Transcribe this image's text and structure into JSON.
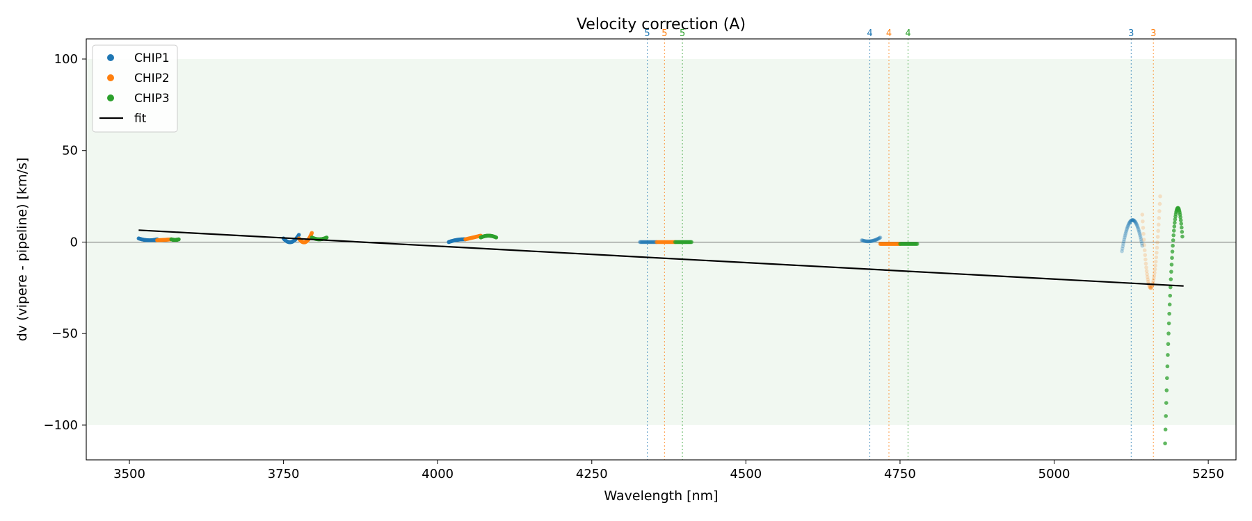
{
  "chart_data": {
    "type": "scatter",
    "title": "Velocity correction (A)",
    "xlabel": "Wavelength [nm]",
    "ylabel": "dv (vipere - pipeline) [km/s]",
    "xlim": [
      3430,
      5295
    ],
    "ylim": [
      -119,
      111
    ],
    "xticks": [
      3500,
      3750,
      4000,
      4250,
      4500,
      4750,
      5000,
      5250
    ],
    "yticks": [
      -100,
      -50,
      0,
      50,
      100
    ],
    "xtick_labels": [
      "3500",
      "3750",
      "4000",
      "4250",
      "4500",
      "4750",
      "5000",
      "5250"
    ],
    "ytick_labels": [
      "−100",
      "−50",
      "0",
      "50",
      "100"
    ],
    "band": {
      "y0": -100,
      "y1": 100,
      "color": "#e8f4e8"
    },
    "zero_line": 0,
    "legend": {
      "position": "upper-left",
      "entries": [
        {
          "label": "CHIP1",
          "kind": "marker",
          "color": "#1f77b4"
        },
        {
          "label": "CHIP2",
          "kind": "marker",
          "color": "#ff7f0e"
        },
        {
          "label": "CHIP3",
          "kind": "marker",
          "color": "#2ca02c"
        },
        {
          "label": "fit",
          "kind": "line",
          "color": "#000000"
        }
      ]
    },
    "colors": {
      "CHIP1": "#1f77b4",
      "CHIP2": "#ff7f0e",
      "CHIP3": "#2ca02c"
    },
    "fit": {
      "x": [
        3515,
        5210
      ],
      "y": [
        6.5,
        -24
      ]
    },
    "order_markers": [
      {
        "x": 4340,
        "label": "5",
        "chip": "CHIP1"
      },
      {
        "x": 4368,
        "label": "5",
        "chip": "CHIP2"
      },
      {
        "x": 4397,
        "label": "5",
        "chip": "CHIP3"
      },
      {
        "x": 4701,
        "label": "4",
        "chip": "CHIP1"
      },
      {
        "x": 4732,
        "label": "4",
        "chip": "CHIP2"
      },
      {
        "x": 4763,
        "label": "4",
        "chip": "CHIP3"
      },
      {
        "x": 5125,
        "label": "3",
        "chip": "CHIP1"
      },
      {
        "x": 5161,
        "label": "3",
        "chip": "CHIP2"
      }
    ],
    "segments": [
      {
        "chip": "CHIP1",
        "alpha": 0.9,
        "x0": 3515,
        "x1": 3545,
        "mode": "poly",
        "y": [
          2,
          1,
          1.5
        ]
      },
      {
        "chip": "CHIP2",
        "alpha": 0.9,
        "x0": 3545,
        "x1": 3568,
        "mode": "poly",
        "y": [
          1,
          1.2,
          1.5
        ]
      },
      {
        "chip": "CHIP3",
        "alpha": 0.9,
        "x0": 3568,
        "x1": 3580,
        "mode": "poly",
        "y": [
          1.5,
          1.2,
          1.5
        ]
      },
      {
        "chip": "CHIP1",
        "alpha": 0.9,
        "x0": 3750,
        "x1": 3775,
        "mode": "poly",
        "y": [
          2,
          0,
          4
        ]
      },
      {
        "chip": "CHIP2",
        "alpha": 0.9,
        "x0": 3775,
        "x1": 3796,
        "mode": "poly",
        "y": [
          2,
          0,
          5
        ]
      },
      {
        "chip": "CHIP3",
        "alpha": 0.9,
        "x0": 3796,
        "x1": 3820,
        "mode": "poly",
        "y": [
          2.5,
          1.5,
          2.5
        ]
      },
      {
        "chip": "CHIP1",
        "alpha": 0.9,
        "x0": 4018,
        "x1": 4045,
        "mode": "poly",
        "y": [
          0,
          1.2,
          1.5
        ]
      },
      {
        "chip": "CHIP2",
        "alpha": 0.9,
        "x0": 4045,
        "x1": 4070,
        "mode": "poly",
        "y": [
          1.5,
          2.5,
          3.5
        ]
      },
      {
        "chip": "CHIP3",
        "alpha": 0.9,
        "x0": 4070,
        "x1": 4095,
        "mode": "poly",
        "y": [
          2.5,
          3.5,
          2.5
        ]
      },
      {
        "chip": "CHIP1",
        "alpha": 0.35,
        "x0": 4328,
        "x1": 4355,
        "mode": "poly",
        "y": [
          0,
          0,
          0
        ]
      },
      {
        "chip": "CHIP2",
        "alpha": 0.55,
        "x0": 4355,
        "x1": 4385,
        "mode": "poly",
        "y": [
          0,
          0,
          0
        ]
      },
      {
        "chip": "CHIP3",
        "alpha": 0.55,
        "x0": 4385,
        "x1": 4412,
        "mode": "poly",
        "y": [
          0,
          0,
          0
        ]
      },
      {
        "chip": "CHIP1",
        "alpha": 0.35,
        "x0": 4688,
        "x1": 4718,
        "mode": "poly",
        "y": [
          1,
          0.5,
          2.5
        ]
      },
      {
        "chip": "CHIP2",
        "alpha": 0.8,
        "x0": 4718,
        "x1": 4750,
        "mode": "poly",
        "y": [
          -1,
          -1,
          -1
        ]
      },
      {
        "chip": "CHIP3",
        "alpha": 0.55,
        "x0": 4750,
        "x1": 4778,
        "mode": "poly",
        "y": [
          -1,
          -1,
          -1
        ]
      },
      {
        "chip": "CHIP1",
        "alpha": 0.3,
        "x0": 5110,
        "x1": 5143,
        "mode": "arch",
        "y": [
          -5,
          12,
          -2
        ]
      },
      {
        "chip": "CHIP2",
        "alpha": 0.2,
        "x0": 5143,
        "x1": 5172,
        "mode": "arch",
        "y": [
          15,
          -25,
          25
        ]
      },
      {
        "chip": "CHIP3",
        "alpha": 0.75,
        "x0": 5180,
        "x1": 5208,
        "mode": "arch",
        "y": [
          -110,
          5,
          3
        ]
      }
    ]
  }
}
